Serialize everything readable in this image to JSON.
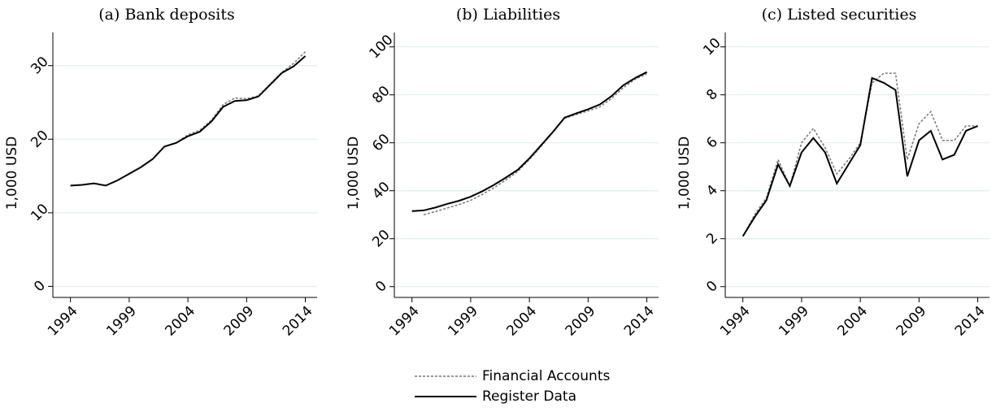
{
  "chart_data": [
    {
      "type": "line",
      "title": "(a) Bank deposits",
      "ylabel": "1,000 USD",
      "x": [
        1994,
        1995,
        1996,
        1997,
        1998,
        1999,
        2000,
        2001,
        2002,
        2003,
        2004,
        2005,
        2006,
        2007,
        2008,
        2009,
        2010,
        2011,
        2012,
        2013,
        2014
      ],
      "series": [
        {
          "name": "Financial Accounts",
          "color": "#777777",
          "line_style": "dashed",
          "values": [
            13.7,
            13.8,
            14.0,
            13.7,
            14.4,
            15.3,
            16.2,
            17.3,
            19.0,
            19.5,
            20.6,
            21.2,
            22.6,
            24.7,
            25.6,
            25.5,
            25.9,
            27.5,
            29.1,
            30.3,
            31.9
          ]
        },
        {
          "name": "Register Data",
          "color": "#000000",
          "line_style": "solid",
          "values": [
            13.7,
            13.8,
            14.0,
            13.7,
            14.4,
            15.3,
            16.2,
            17.3,
            19.0,
            19.5,
            20.4,
            21.0,
            22.4,
            24.4,
            25.2,
            25.3,
            25.8,
            27.4,
            29.0,
            29.9,
            31.3
          ]
        }
      ],
      "xlim": [
        1992.5,
        2015
      ],
      "xticks": [
        1994,
        1999,
        2004,
        2009,
        2014
      ],
      "ylim": [
        -1.5,
        34.5
      ],
      "yticks": [
        0,
        10,
        20,
        30
      ],
      "grid": true
    },
    {
      "type": "line",
      "title": "(b) Liabilities",
      "ylabel": "1,000 USD",
      "x": [
        1994,
        1995,
        1996,
        1997,
        1998,
        1999,
        2000,
        2001,
        2002,
        2003,
        2004,
        2005,
        2006,
        2007,
        2008,
        2009,
        2010,
        2011,
        2012,
        2013,
        2014
      ],
      "series": [
        {
          "name": "Financial Accounts",
          "color": "#777777",
          "line_style": "dashed",
          "values": [
            null,
            30,
            31.3,
            32.8,
            34.2,
            36,
            38.5,
            41.3,
            44.5,
            48,
            53,
            58.5,
            64.5,
            70.2,
            71.8,
            73.3,
            75,
            78.5,
            83,
            86.5,
            88.8
          ]
        },
        {
          "name": "Register Data",
          "color": "#000000",
          "line_style": "solid",
          "values": [
            31.5,
            31.8,
            33,
            34.5,
            35.8,
            37.5,
            39.8,
            42.5,
            45.5,
            48.7,
            53.5,
            59,
            64.5,
            70.5,
            72.3,
            74,
            76,
            79.5,
            84,
            87,
            89.5
          ]
        }
      ],
      "xlim": [
        1992.5,
        2015
      ],
      "xticks": [
        1994,
        1999,
        2004,
        2009,
        2014
      ],
      "ylim": [
        -4.5,
        106
      ],
      "yticks": [
        0,
        20,
        40,
        60,
        80,
        100
      ],
      "grid": true
    },
    {
      "type": "line",
      "title": "(c) Listed securities",
      "ylabel": "1,000 USD",
      "x": [
        1994,
        1995,
        1996,
        1997,
        1998,
        1999,
        2000,
        2001,
        2002,
        2003,
        2004,
        2005,
        2006,
        2007,
        2008,
        2009,
        2010,
        2011,
        2012,
        2013,
        2014
      ],
      "series": [
        {
          "name": "Financial Accounts",
          "color": "#777777",
          "line_style": "dashed",
          "values": [
            2.1,
            3.0,
            3.7,
            5.3,
            4.2,
            6.0,
            6.6,
            5.8,
            4.7,
            5.3,
            6.0,
            8.5,
            8.9,
            8.9,
            5.3,
            6.8,
            7.3,
            6.1,
            6.1,
            6.7,
            6.7
          ]
        },
        {
          "name": "Register Data",
          "color": "#000000",
          "line_style": "solid",
          "values": [
            2.1,
            2.9,
            3.6,
            5.1,
            4.2,
            5.6,
            6.2,
            5.6,
            4.3,
            5.1,
            5.9,
            8.7,
            8.5,
            8.2,
            4.6,
            6.1,
            6.5,
            5.3,
            5.5,
            6.5,
            6.7
          ]
        }
      ],
      "xlim": [
        1992.5,
        2015
      ],
      "xticks": [
        1994,
        1999,
        2004,
        2009,
        2014
      ],
      "ylim": [
        -0.45,
        10.6
      ],
      "yticks": [
        0,
        2,
        4,
        6,
        8,
        10
      ],
      "grid": true
    }
  ]
}
